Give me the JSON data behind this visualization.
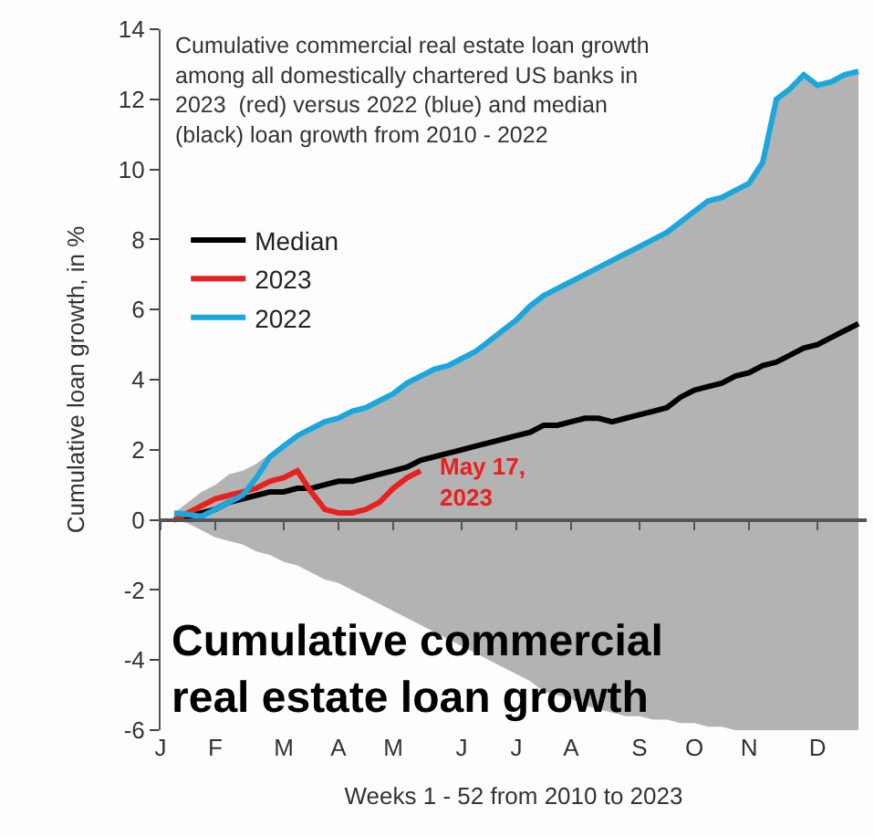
{
  "chart_data": {
    "type": "line",
    "title": "Cumulative commercial real estate loan growth among all domestically chartered US banks in 2023  (red) versus 2022 (blue) and median (black) loan growth from 2010 - 2022",
    "xlabel": "Weeks 1 - 52 from 2010 to 2023",
    "ylabel": "Cumulative loan growth, in %",
    "categories": [
      "J",
      null,
      null,
      null,
      "F",
      null,
      null,
      null,
      null,
      "M",
      null,
      null,
      null,
      "A",
      null,
      null,
      null,
      "M",
      null,
      null,
      null,
      null,
      "J",
      null,
      null,
      null,
      "J",
      null,
      null,
      null,
      "A",
      null,
      null,
      null,
      null,
      "S",
      null,
      null,
      null,
      "O",
      null,
      null,
      null,
      "N",
      null,
      null,
      null,
      null,
      "D",
      null,
      null,
      null
    ],
    "ylim": [
      -6,
      14
    ],
    "yticks": [
      -6,
      -4,
      -2,
      0,
      2,
      4,
      6,
      8,
      10,
      12,
      14
    ],
    "legend": "top left",
    "series": [
      {
        "type": "area",
        "color": "#b3b3b3",
        "values": [
          null,
          0.2,
          0.5,
          0.8,
          1.0,
          1.3,
          1.4,
          1.6,
          1.9,
          2.2,
          2.4,
          2.6,
          2.8,
          2.9,
          3.1,
          3.2,
          3.4,
          3.6,
          3.9,
          4.1,
          4.3,
          4.4,
          4.6,
          4.8,
          5.1,
          5.4,
          5.7,
          6.1,
          6.4,
          6.6,
          6.8,
          7.0,
          7.2,
          7.4,
          7.6,
          7.8,
          8.0,
          8.2,
          8.5,
          8.8,
          9.1,
          9.2,
          9.4,
          9.6,
          10.2,
          12.0,
          12.3,
          12.7,
          12.4,
          12.5,
          12.7,
          12.8
        ]
      },
      {
        "type": "area",
        "color": "#b3b3b3",
        "values": [
          null,
          0,
          -0.1,
          -0.3,
          -0.5,
          -0.6,
          -0.7,
          -0.9,
          -1.0,
          -1.2,
          -1.3,
          -1.5,
          -1.7,
          -1.8,
          -2.0,
          -2.2,
          -2.4,
          -2.6,
          -2.8,
          -3.0,
          -3.2,
          -3.4,
          -3.6,
          -3.8,
          -4.0,
          -4.2,
          -4.4,
          -4.6,
          -4.9,
          -5.0,
          -5.1,
          -5.3,
          -5.4,
          -5.5,
          -5.6,
          -5.6,
          -5.7,
          -5.7,
          -5.8,
          -5.8,
          -5.9,
          -5.9,
          -6.0,
          -6.0,
          -6.0,
          -6.0,
          -6.0,
          -6.0,
          -6.0,
          -6.0,
          -6.0,
          -6.0
        ]
      },
      {
        "name": "Median",
        "color": "#000000",
        "values": [
          null,
          0.0,
          0.1,
          0.2,
          0.3,
          0.5,
          0.6,
          0.7,
          0.8,
          0.8,
          0.9,
          0.9,
          1.0,
          1.1,
          1.1,
          1.2,
          1.3,
          1.4,
          1.5,
          1.7,
          1.8,
          1.9,
          2.0,
          2.1,
          2.2,
          2.3,
          2.4,
          2.5,
          2.7,
          2.7,
          2.8,
          2.9,
          2.9,
          2.8,
          2.9,
          3.0,
          3.1,
          3.2,
          3.5,
          3.7,
          3.8,
          3.9,
          4.1,
          4.2,
          4.4,
          4.5,
          4.7,
          4.9,
          5.0,
          5.2,
          5.4,
          5.6
        ]
      },
      {
        "name": "2023",
        "color": "#e8211f",
        "values": [
          null,
          0.0,
          0.2,
          0.4,
          0.6,
          0.7,
          0.8,
          0.9,
          1.1,
          1.2,
          1.4,
          0.8,
          0.3,
          0.2,
          0.2,
          0.3,
          0.5,
          0.9,
          1.2,
          1.4,
          null,
          null,
          null,
          null,
          null,
          null,
          null,
          null,
          null,
          null,
          null,
          null,
          null,
          null,
          null,
          null,
          null,
          null,
          null,
          null,
          null,
          null,
          null,
          null,
          null,
          null,
          null,
          null,
          null,
          null,
          null,
          null
        ]
      },
      {
        "name": "2022",
        "color": "#1aa7de",
        "values": [
          null,
          0.2,
          0.15,
          0.1,
          0.3,
          0.5,
          0.7,
          1.2,
          1.8,
          2.1,
          2.4,
          2.6,
          2.8,
          2.9,
          3.1,
          3.2,
          3.4,
          3.6,
          3.9,
          4.1,
          4.3,
          4.4,
          4.6,
          4.8,
          5.1,
          5.4,
          5.7,
          6.1,
          6.4,
          6.6,
          6.8,
          7.0,
          7.2,
          7.4,
          7.6,
          7.8,
          8.0,
          8.2,
          8.5,
          8.8,
          9.1,
          9.2,
          9.4,
          9.6,
          10.2,
          12.0,
          12.3,
          12.7,
          12.4,
          12.5,
          12.7,
          12.8
        ]
      }
    ],
    "annotations": [
      "May 17,\n2023",
      "Cumulative commercial\nreal estate loan growth"
    ]
  }
}
